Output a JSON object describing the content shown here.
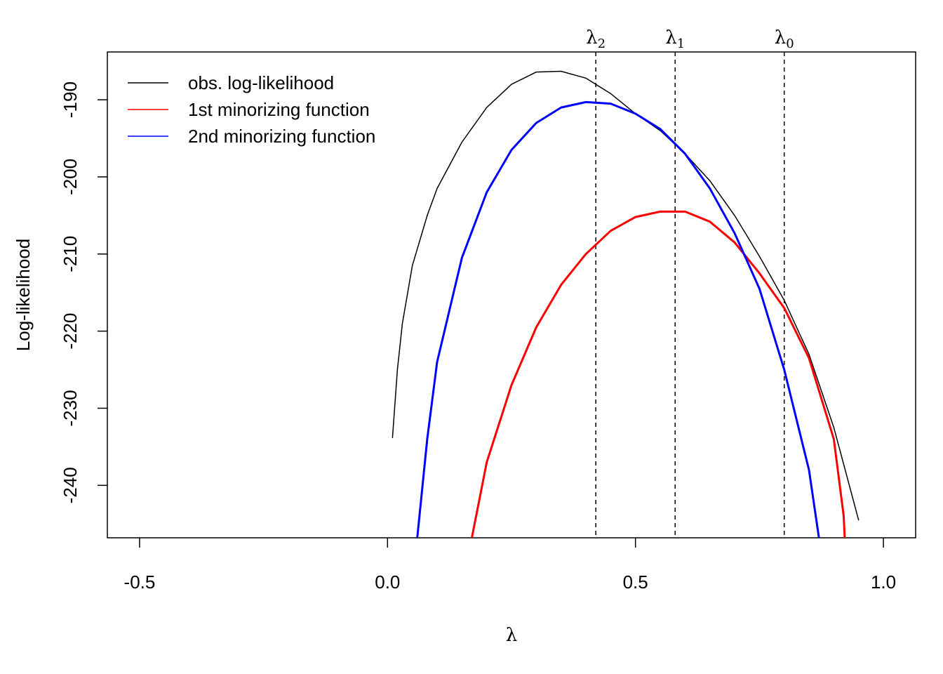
{
  "chart_data": {
    "type": "line",
    "xlabel": "λ",
    "ylabel": "Log-likelihood",
    "xlim": [
      -0.565,
      1.065
    ],
    "ylim": [
      -246.8,
      -183.8
    ],
    "x_ticks": [
      {
        "value": -0.5,
        "label": "-0.5"
      },
      {
        "value": 0.0,
        "label": "0.0"
      },
      {
        "value": 0.5,
        "label": "0.5"
      },
      {
        "value": 1.0,
        "label": "1.0"
      }
    ],
    "y_ticks": [
      {
        "value": -190,
        "label": "-190"
      },
      {
        "value": -200,
        "label": "-200"
      },
      {
        "value": -210,
        "label": "-210"
      },
      {
        "value": -220,
        "label": "-220"
      },
      {
        "value": -230,
        "label": "-230"
      },
      {
        "value": -240,
        "label": "-240"
      }
    ],
    "grid": false,
    "legend_position": "top-left",
    "vlines": [
      {
        "x": 0.42,
        "symbol": "λ",
        "subscript": "2"
      },
      {
        "x": 0.58,
        "symbol": "λ",
        "subscript": "1"
      },
      {
        "x": 0.8,
        "symbol": "λ",
        "subscript": "0"
      }
    ],
    "series": [
      {
        "name": "obs. log-likelihood",
        "color": "#000000",
        "width": 1.5,
        "points": [
          [
            0.01,
            -233.8
          ],
          [
            0.02,
            -225.0
          ],
          [
            0.03,
            -219.0
          ],
          [
            0.05,
            -211.5
          ],
          [
            0.08,
            -205.0
          ],
          [
            0.1,
            -201.5
          ],
          [
            0.15,
            -195.5
          ],
          [
            0.2,
            -191.0
          ],
          [
            0.25,
            -188.0
          ],
          [
            0.3,
            -186.4
          ],
          [
            0.35,
            -186.3
          ],
          [
            0.4,
            -187.2
          ],
          [
            0.45,
            -189.2
          ],
          [
            0.5,
            -191.8
          ],
          [
            0.55,
            -194.0
          ],
          [
            0.6,
            -197.0
          ],
          [
            0.65,
            -200.5
          ],
          [
            0.7,
            -205.0
          ],
          [
            0.75,
            -210.3
          ],
          [
            0.8,
            -216.0
          ],
          [
            0.85,
            -223.0
          ],
          [
            0.9,
            -232.5
          ],
          [
            0.95,
            -244.5
          ]
        ]
      },
      {
        "name": "1st minorizing function",
        "color": "#ff0000",
        "width": 3,
        "points": [
          [
            0.17,
            -246.8
          ],
          [
            0.2,
            -237.0
          ],
          [
            0.25,
            -227.0
          ],
          [
            0.3,
            -219.5
          ],
          [
            0.35,
            -214.0
          ],
          [
            0.4,
            -210.0
          ],
          [
            0.45,
            -207.0
          ],
          [
            0.5,
            -205.2
          ],
          [
            0.55,
            -204.5
          ],
          [
            0.6,
            -204.5
          ],
          [
            0.65,
            -205.8
          ],
          [
            0.7,
            -208.5
          ],
          [
            0.75,
            -212.5
          ],
          [
            0.8,
            -217.0
          ],
          [
            0.85,
            -223.5
          ],
          [
            0.9,
            -234.0
          ],
          [
            0.92,
            -244.0
          ],
          [
            0.922,
            -246.8
          ]
        ]
      },
      {
        "name": "2nd minorizing function",
        "color": "#0000ff",
        "width": 3,
        "points": [
          [
            0.06,
            -246.8
          ],
          [
            0.08,
            -234.0
          ],
          [
            0.1,
            -224.0
          ],
          [
            0.15,
            -210.5
          ],
          [
            0.2,
            -202.0
          ],
          [
            0.25,
            -196.5
          ],
          [
            0.3,
            -193.0
          ],
          [
            0.35,
            -191.0
          ],
          [
            0.4,
            -190.3
          ],
          [
            0.45,
            -190.5
          ],
          [
            0.5,
            -191.8
          ],
          [
            0.55,
            -193.8
          ],
          [
            0.6,
            -197.0
          ],
          [
            0.65,
            -201.5
          ],
          [
            0.7,
            -207.3
          ],
          [
            0.75,
            -214.5
          ],
          [
            0.8,
            -225.0
          ],
          [
            0.85,
            -238.0
          ],
          [
            0.87,
            -246.8
          ]
        ]
      }
    ]
  }
}
